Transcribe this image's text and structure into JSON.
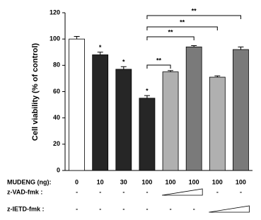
{
  "chart_data": {
    "type": "bar",
    "y_label": "Cell viability (% of control)",
    "x_label": "MUDENG (ng):",
    "categories": [
      "0",
      "10",
      "30",
      "100",
      "100",
      "100",
      "100",
      "100"
    ],
    "values": [
      100,
      88,
      77,
      55,
      75,
      94,
      71,
      92
    ],
    "errors": [
      2,
      2,
      2,
      2,
      1,
      1,
      1,
      2
    ],
    "colors": [
      "#ffffff",
      "#262626",
      "#262626",
      "#262626",
      "#b0b0b0",
      "#7a7a7a",
      "#b0b0b0",
      "#7a7a7a"
    ],
    "ylim": [
      0,
      120
    ],
    "yticks": [
      0,
      20,
      40,
      60,
      80,
      100,
      120
    ],
    "stars": [
      "*",
      "*",
      "*"
    ],
    "brackets": [
      "**",
      "**",
      "**",
      "**"
    ],
    "treatments": [
      {
        "name": "z-VAD-fmk :",
        "values": [
          "-",
          "-",
          "-",
          "-",
          null,
          null,
          "-",
          "-"
        ]
      },
      {
        "name": "z-IETD-fmk :",
        "values": [
          "-",
          "-",
          "-",
          "-",
          "-",
          "-",
          null,
          null
        ]
      }
    ]
  }
}
